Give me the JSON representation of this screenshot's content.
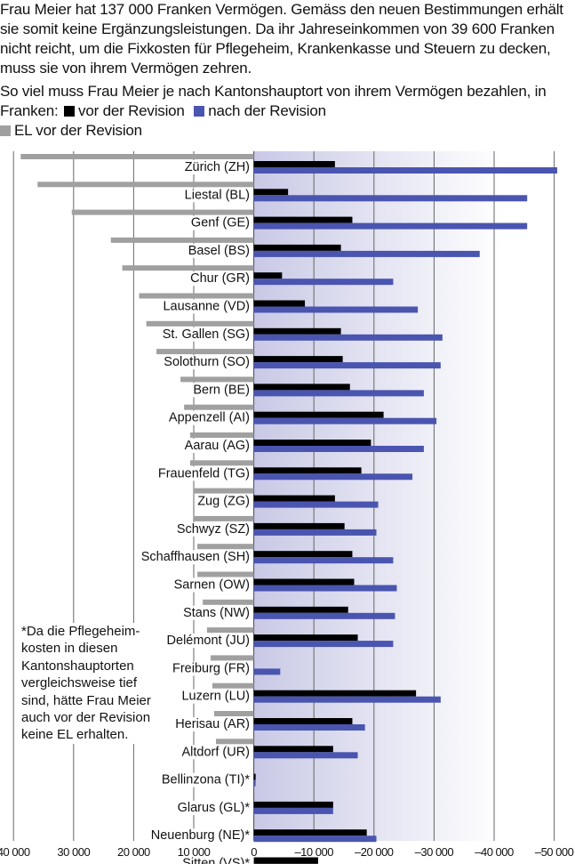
{
  "intro": "Frau Meier hat 137 000 Franken Vermögen. Gemäss den neuen Bestimmungen erhält sie somit keine Ergänzungsleistungen. Da ihr Jahreseinkommen von 39 600 Franken nicht reicht, um die Fixkosten für Pflegeheim, Krankenkasse und Steuern zu decken, muss sie von ihrem Vermögen zehren.",
  "subtitle": "So viel muss Frau Meier je nach Kantonshauptort von ihrem Vermögen bezahlen, in Franken:",
  "footnote": "*Da die Pflegeheim-kosten in diesen Kantonshauptorten vergleichsweise tief sind, hätte Frau Meier auch vor der Revision keine EL erhalten.",
  "colors": {
    "vor": "#000000",
    "nach": "#4a55b0",
    "el": "#a0a0a0",
    "background_gradient": "#c9c9e6"
  },
  "chart_data": {
    "type": "bar",
    "orientation": "horizontal",
    "legend_placement": "top",
    "xlim": [
      40000,
      -50000
    ],
    "grid": true,
    "x_ticks": [
      "40 000",
      "30 000",
      "20 000",
      "10 000",
      "0",
      "–10 000",
      "–20 000",
      "–30 000",
      "–40 000",
      "–50 000"
    ],
    "x_tick_values": [
      40000,
      30000,
      20000,
      10000,
      0,
      -10000,
      -20000,
      -30000,
      -40000,
      -50000
    ],
    "categories": [
      "Zürich (ZH)",
      "Liestal (BL)",
      "Genf (GE)",
      "Basel (BS)",
      "Chur (GR)",
      "Lausanne (VD)",
      "St. Gallen (SG)",
      "Solothurn (SO)",
      "Bern (BE)",
      "Appenzell (AI)",
      "Aarau (AG)",
      "Frauenfeld (TG)",
      "Zug (ZG)",
      "Schwyz (SZ)",
      "Schaffhausen (SH)",
      "Sarnen (OW)",
      "Stans (NW)",
      "Delémont (JU)",
      "Freiburg (FR)",
      "Luzern (LU)",
      "Herisau (AR)",
      "Altdorf (UR)",
      "Bellinzona (TI)*",
      "Glarus (GL)*",
      "Neuenburg (NE)*",
      "Sitten (VS)*"
    ],
    "series": [
      {
        "name": "vor der Revision",
        "color": "#000000",
        "values": [
          -13500,
          -5700,
          -16400,
          -14500,
          -4700,
          -8500,
          -14500,
          -14800,
          -16000,
          -21600,
          -19500,
          -17900,
          -13500,
          -15100,
          -16400,
          -16700,
          -15700,
          -17300,
          0,
          -27000,
          -16400,
          -13200,
          -300,
          -13200,
          -18800,
          -10700
        ]
      },
      {
        "name": "nach der Revision",
        "color": "#4a55b0",
        "values": [
          -50500,
          -45500,
          -45500,
          -37600,
          -23200,
          -27300,
          -31400,
          -31100,
          -28300,
          -30400,
          -28300,
          -26400,
          -20700,
          -20400,
          -23200,
          -23800,
          -23500,
          -23200,
          -4400,
          -31100,
          -18500,
          -17300,
          -300,
          -13200,
          -20400,
          -10700
        ]
      },
      {
        "name": "EL vor der Revision",
        "color": "#a0a0a0",
        "values": [
          38800,
          36000,
          30300,
          23800,
          21900,
          19100,
          17900,
          16200,
          12200,
          11600,
          10600,
          10600,
          10000,
          10000,
          9400,
          9400,
          8500,
          7800,
          7200,
          6900,
          6600,
          6300,
          0,
          0,
          0,
          0
        ]
      }
    ]
  }
}
